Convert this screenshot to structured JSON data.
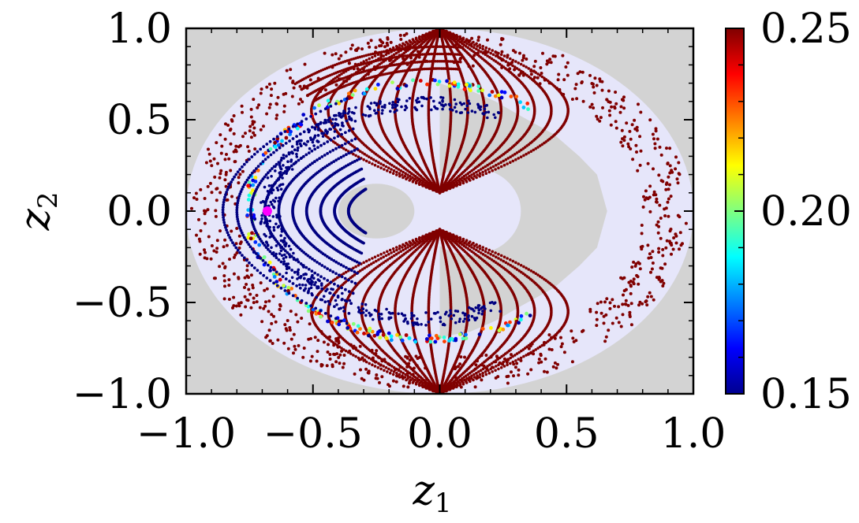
{
  "chart_data": {
    "type": "scatter",
    "xlabel": "z",
    "xlabel_sub": "1",
    "ylabel": "z",
    "ylabel_sub": "2",
    "xlim": [
      -1.0,
      1.0
    ],
    "ylim": [
      -1.0,
      1.0
    ],
    "xticks": [
      -1.0,
      -0.5,
      0.0,
      0.5,
      1.0
    ],
    "yticks": [
      -1.0,
      -0.5,
      0.0,
      0.5,
      1.0
    ],
    "xtick_labels": [
      "−1.0",
      "−0.5",
      "0.0",
      "0.5",
      "1.0"
    ],
    "ytick_labels": [
      "−1.0",
      "−0.5",
      "0.0",
      "0.5",
      "1.0"
    ],
    "colorbar": {
      "min": 0.15,
      "max": 0.25,
      "ticks": [
        0.15,
        0.2,
        0.25
      ],
      "tick_labels": [
        "0.15",
        "0.20",
        "0.25"
      ],
      "colormap": "jet"
    },
    "background": {
      "outer_color": "#d3d3d3",
      "disk_color": "#e6e6fa",
      "disk_center": [
        0.0,
        0.0
      ],
      "disk_radius": 1.0,
      "inner_region_center": [
        -0.25,
        0.0
      ],
      "inner_region_radius": 0.2
    },
    "highlight_point": {
      "x": -0.68,
      "y": 0.0,
      "color": "#ff00ff"
    },
    "series": [
      {
        "value": 0.25,
        "kind": "outer-chaotic-ring",
        "r_range": [
          0.8,
          0.98
        ]
      },
      {
        "value": 0.25,
        "kind": "separatrix-lobes"
      },
      {
        "value": 0.21,
        "kind": "colored-ring",
        "r_range": [
          0.68,
          0.72
        ]
      },
      {
        "value": 0.15,
        "kind": "inner-crescents"
      }
    ]
  }
}
